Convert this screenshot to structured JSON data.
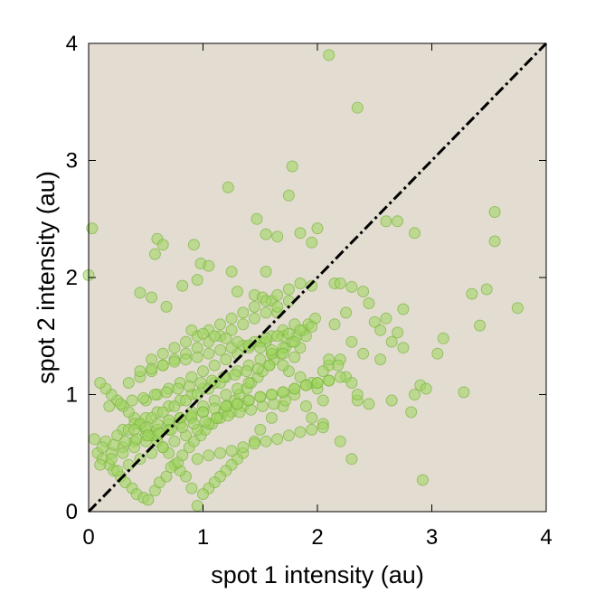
{
  "chart_data": {
    "type": "scatter",
    "xlabel": "spot 1 intensity (au)",
    "ylabel": "spot 2 intensity (au)",
    "xlim": [
      0,
      4
    ],
    "ylim": [
      0,
      4
    ],
    "xticks": [
      "0",
      "1",
      "2",
      "3",
      "4"
    ],
    "yticks": [
      "0",
      "1",
      "2",
      "3",
      "4"
    ],
    "grid": false,
    "background_color": "#e3ddd1",
    "marker_color": "#9ed65c",
    "marker_edge_color": "#7cb342",
    "reference_line": {
      "from": [
        0,
        0
      ],
      "to": [
        4,
        4
      ],
      "style": "dash-dot",
      "color": "#000000"
    },
    "series": [
      {
        "x": [
          2.1,
          2.35,
          1.78,
          1.75,
          1.22,
          1.47,
          1.55,
          1.65,
          2.0,
          1.85,
          1.95,
          0.03,
          0.6,
          0.65,
          0.58,
          0.92,
          0.98,
          1.05,
          1.25,
          1.55,
          0.0,
          0.95,
          0.82,
          0.45,
          0.55,
          0.68,
          1.3,
          1.45,
          1.52,
          1.95,
          2.15,
          2.2,
          2.3,
          2.4,
          2.45,
          2.6,
          2.7,
          2.85,
          3.55,
          3.55,
          3.35,
          3.48,
          3.42,
          3.75,
          3.1,
          3.05,
          2.75,
          2.6,
          2.5,
          2.55,
          2.7,
          2.65,
          2.75,
          2.4,
          2.3,
          2.2,
          2.1,
          2.05,
          2.25,
          2.55,
          2.9,
          2.95,
          2.85,
          2.65,
          2.45,
          2.35,
          2.3,
          2.2,
          3.28,
          2.82,
          2.92,
          2.18,
          2.3,
          2.35,
          2.05,
          1.95,
          2.1,
          1.85,
          1.75,
          1.7,
          1.8,
          1.65,
          1.6,
          1.55,
          1.6,
          1.7,
          1.85,
          2.0,
          1.9,
          1.95,
          2.05,
          2.15,
          2.25,
          1.8,
          1.7,
          1.6,
          1.5,
          1.45,
          1.35,
          1.3,
          1.25,
          1.2,
          1.15,
          1.1,
          1.05,
          1.0,
          0.95,
          0.9,
          0.85,
          0.8,
          0.75,
          0.7,
          0.65,
          0.6,
          0.55,
          0.5,
          0.45,
          0.4,
          0.35,
          0.3,
          0.25,
          0.2,
          0.15,
          0.1,
          0.05,
          0.08,
          0.12,
          0.18,
          0.22,
          0.28,
          0.32,
          0.38,
          0.42,
          0.48,
          0.52,
          0.58,
          0.62,
          0.68,
          0.72,
          0.78,
          0.82,
          0.88,
          0.92,
          0.98,
          1.02,
          1.08,
          1.12,
          1.18,
          1.22,
          1.28,
          1.32,
          1.38,
          1.42,
          1.48,
          1.52,
          1.58,
          1.62,
          1.68,
          1.72,
          1.78,
          1.82,
          1.88,
          1.92,
          1.98,
          0.3,
          0.4,
          0.5,
          0.6,
          0.7,
          0.8,
          0.9,
          1.0,
          1.1,
          1.2,
          1.3,
          1.4,
          1.5,
          1.6,
          1.7,
          1.8,
          1.9,
          0.35,
          0.45,
          0.55,
          0.65,
          0.75,
          0.85,
          0.95,
          1.05,
          1.15,
          1.25,
          1.35,
          1.45,
          1.55,
          1.65,
          1.75,
          0.2,
          0.3,
          0.4,
          0.5,
          0.6,
          0.7,
          0.8,
          0.9,
          1.0,
          1.1,
          1.2,
          1.3,
          1.4,
          0.25,
          0.35,
          0.45,
          0.55,
          0.65,
          0.75,
          0.85,
          0.95,
          1.05,
          1.15,
          1.25,
          1.35,
          0.15,
          0.25,
          0.35,
          0.45,
          0.55,
          0.65,
          0.75,
          0.85,
          0.95,
          1.05,
          1.15,
          0.1,
          0.2,
          0.3,
          0.4,
          0.5,
          0.6,
          0.7,
          0.8,
          0.9,
          1.0,
          0.55,
          0.65,
          0.75,
          0.85,
          0.95,
          1.05,
          1.15,
          1.25,
          1.35,
          1.45,
          1.55,
          1.65,
          1.75,
          1.85,
          0.5,
          0.6,
          0.7,
          0.8,
          0.9,
          1.0,
          1.1,
          1.2,
          1.3,
          1.4,
          1.5,
          1.6,
          1.7,
          0.4,
          0.5,
          0.6,
          0.7,
          0.8,
          0.9,
          1.0,
          1.1,
          1.2,
          1.3,
          1.4,
          1.5,
          1.6,
          1.7,
          1.8,
          1.9,
          2.0,
          2.1,
          0.45,
          0.55,
          0.65,
          0.75,
          0.85,
          0.95,
          1.05,
          1.15,
          1.25,
          1.35,
          1.45,
          1.55,
          1.65,
          1.75,
          1.85,
          1.95,
          0.12,
          0.22,
          0.32,
          0.42,
          0.52,
          0.62,
          0.72,
          0.82,
          0.92,
          1.02,
          1.12,
          1.22,
          1.32,
          1.42,
          1.52,
          1.62,
          1.72,
          0.18,
          0.28,
          0.38,
          0.48,
          0.58,
          0.68,
          0.78,
          0.88,
          0.98,
          1.08,
          1.18,
          1.28,
          1.38,
          1.48,
          1.58,
          0.95,
          1.05,
          1.15,
          1.25,
          1.35,
          1.45,
          1.55,
          1.65,
          1.75,
          1.85,
          1.95,
          2.05,
          0.9,
          1.0,
          1.1,
          1.2,
          1.3,
          1.4,
          1.5,
          1.6,
          1.7,
          1.8,
          1.2,
          1.3,
          1.4,
          1.5,
          1.6,
          1.7,
          1.8,
          1.9,
          2.0,
          2.1,
          2.2
        ],
        "y": [
          3.9,
          3.45,
          2.95,
          2.7,
          2.77,
          2.5,
          2.37,
          2.35,
          2.42,
          2.38,
          2.3,
          2.42,
          2.33,
          2.28,
          2.2,
          2.28,
          2.12,
          2.1,
          2.05,
          2.05,
          2.02,
          1.98,
          1.93,
          1.87,
          1.83,
          1.75,
          1.88,
          1.85,
          1.83,
          1.93,
          1.95,
          1.95,
          1.92,
          1.88,
          1.78,
          2.48,
          2.48,
          2.38,
          2.56,
          2.31,
          1.86,
          1.9,
          1.59,
          1.74,
          1.48,
          1.35,
          1.73,
          1.65,
          1.62,
          1.55,
          1.53,
          1.45,
          1.4,
          1.35,
          1.45,
          1.3,
          1.25,
          1.2,
          1.15,
          1.3,
          1.08,
          1.05,
          1.0,
          0.95,
          0.92,
          0.95,
          0.45,
          0.6,
          1.02,
          0.85,
          0.27,
          1.25,
          1.1,
          1.0,
          0.95,
          1.1,
          1.3,
          1.4,
          1.2,
          1.5,
          1.6,
          1.7,
          1.8,
          1.45,
          1.35,
          1.25,
          1.15,
          1.05,
          0.9,
          0.8,
          0.75,
          1.6,
          1.7,
          1.0,
          0.9,
          0.8,
          0.7,
          0.6,
          0.5,
          0.45,
          0.4,
          0.35,
          0.3,
          0.25,
          0.2,
          0.15,
          0.05,
          0.2,
          0.3,
          0.35,
          0.4,
          0.5,
          0.55,
          0.6,
          0.65,
          0.7,
          0.75,
          0.8,
          0.85,
          0.9,
          0.95,
          1.0,
          1.05,
          1.1,
          0.62,
          0.5,
          0.45,
          0.4,
          0.35,
          0.3,
          0.25,
          0.2,
          0.15,
          0.12,
          0.1,
          0.18,
          0.25,
          0.3,
          0.38,
          0.42,
          0.48,
          0.55,
          0.6,
          0.65,
          0.7,
          0.75,
          0.8,
          0.85,
          0.9,
          0.95,
          1.0,
          1.05,
          1.1,
          1.15,
          1.2,
          1.25,
          1.3,
          1.35,
          1.4,
          1.45,
          1.5,
          1.55,
          1.6,
          1.65,
          0.7,
          0.75,
          0.8,
          0.85,
          0.9,
          0.95,
          1.0,
          1.05,
          1.1,
          1.15,
          1.2,
          1.25,
          1.3,
          1.35,
          1.4,
          1.45,
          1.5,
          1.1,
          1.15,
          1.2,
          1.25,
          1.3,
          1.35,
          1.4,
          1.45,
          1.5,
          1.55,
          1.6,
          1.65,
          1.7,
          1.75,
          1.8,
          0.5,
          0.55,
          0.6,
          0.65,
          0.7,
          0.75,
          0.8,
          0.85,
          0.9,
          0.95,
          1.0,
          1.05,
          1.1,
          0.35,
          0.4,
          0.45,
          0.5,
          0.55,
          0.6,
          0.65,
          0.7,
          0.75,
          0.8,
          0.85,
          0.9,
          0.6,
          0.65,
          0.7,
          0.75,
          0.8,
          0.85,
          0.9,
          0.95,
          1.0,
          1.05,
          1.1,
          0.4,
          0.45,
          0.5,
          0.55,
          0.6,
          0.65,
          0.7,
          0.75,
          0.8,
          0.85,
          1.3,
          1.35,
          1.4,
          1.45,
          1.5,
          1.55,
          1.6,
          1.65,
          1.7,
          1.75,
          1.8,
          1.85,
          1.9,
          1.95,
          0.95,
          1.0,
          1.05,
          1.1,
          1.15,
          1.2,
          1.25,
          1.3,
          1.35,
          1.4,
          1.45,
          1.5,
          1.55,
          0.7,
          0.72,
          0.75,
          0.78,
          0.8,
          0.82,
          0.85,
          0.88,
          0.9,
          0.92,
          0.95,
          0.98,
          1.0,
          1.02,
          1.05,
          1.08,
          1.1,
          1.12,
          1.2,
          1.22,
          1.25,
          1.28,
          1.3,
          1.32,
          1.35,
          1.38,
          1.4,
          1.42,
          1.45,
          1.48,
          1.5,
          1.52,
          1.55,
          1.58,
          0.55,
          0.57,
          0.6,
          0.62,
          0.65,
          0.67,
          0.7,
          0.72,
          0.75,
          0.77,
          0.8,
          0.82,
          0.85,
          0.87,
          0.9,
          0.92,
          0.95,
          0.9,
          0.92,
          0.95,
          0.97,
          1.0,
          1.02,
          1.05,
          1.07,
          1.1,
          1.12,
          1.15,
          1.17,
          1.2,
          1.22,
          1.25,
          0.45,
          0.48,
          0.5,
          0.52,
          0.55,
          0.58,
          0.6,
          0.62,
          0.65,
          0.68,
          0.7,
          0.72,
          1.55,
          1.52,
          1.5,
          1.48,
          1.45,
          1.42,
          1.4,
          1.38,
          1.35,
          1.32,
          0.9,
          0.92,
          0.95,
          0.98,
          1.0,
          1.02,
          1.05,
          1.08,
          1.1,
          1.12,
          1.15
        ]
      }
    ]
  }
}
